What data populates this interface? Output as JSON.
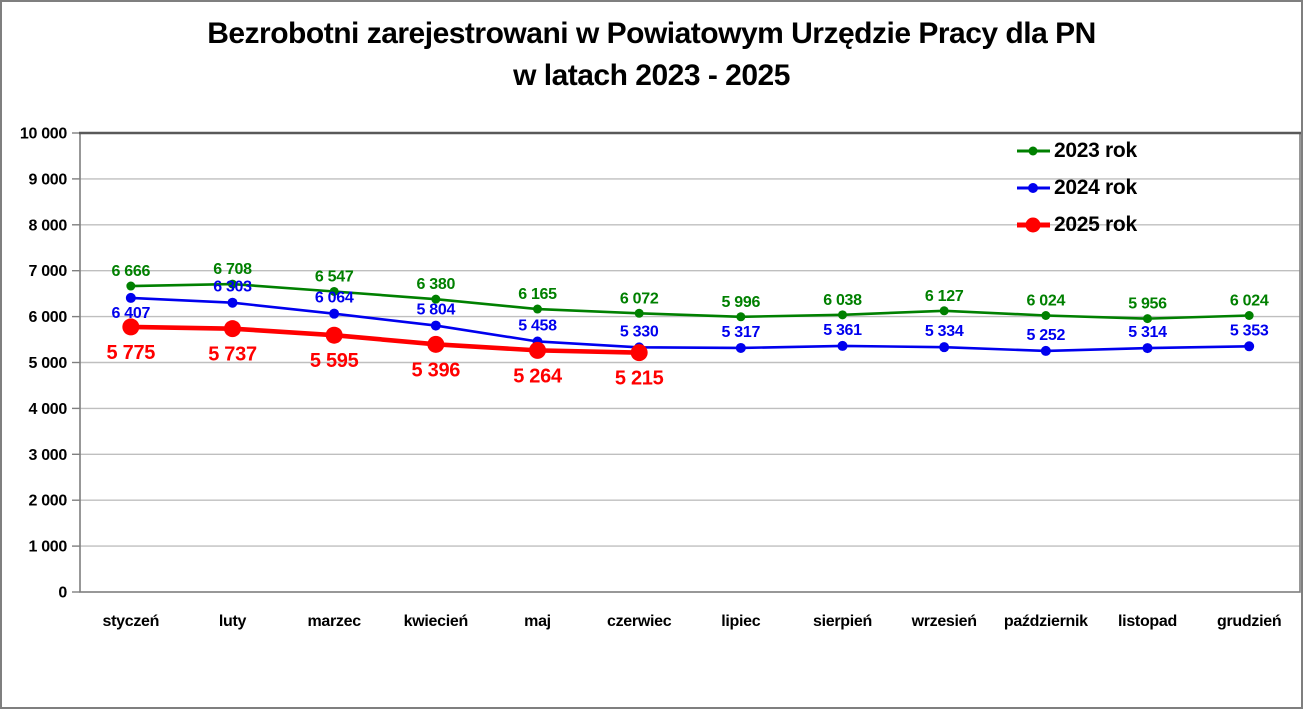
{
  "title": {
    "line1": "Bezrobotni zarejestrowani w Powiatowym Urzędzie Pracy dla PN",
    "line2": "w latach 2023 - 2025"
  },
  "chart_data": {
    "type": "line",
    "title": "Bezrobotni zarejestrowani w Powiatowym Urzędzie Pracy dla PN w latach 2023 - 2025",
    "categories": [
      "styczeń",
      "luty",
      "marzec",
      "kwiecień",
      "maj",
      "czerwiec",
      "lipiec",
      "sierpień",
      "wrzesień",
      "październik",
      "listopad",
      "grudzień"
    ],
    "series": [
      {
        "name": "2023 rok",
        "color": "#008000",
        "values": [
          6666,
          6708,
          6547,
          6380,
          6165,
          6072,
          5996,
          6038,
          6127,
          6024,
          5956,
          6024
        ]
      },
      {
        "name": "2024 rok",
        "color": "#0000EE",
        "values": [
          6407,
          6303,
          6064,
          5804,
          5458,
          5330,
          5317,
          5361,
          5334,
          5252,
          5314,
          5353
        ]
      },
      {
        "name": "2025 rok",
        "color": "#FF0000",
        "values": [
          5775,
          5737,
          5595,
          5396,
          5264,
          5215
        ]
      }
    ],
    "ylim": [
      0,
      10000
    ],
    "y_tick_step": 1000,
    "y_tick_labels": [
      "0",
      "1 000",
      "2 000",
      "3 000",
      "4 000",
      "5 000",
      "6 000",
      "7 000",
      "8 000",
      "9 000",
      "10 000"
    ],
    "grid": "horizontal",
    "legend_position": "top-right",
    "data_labels": true
  }
}
